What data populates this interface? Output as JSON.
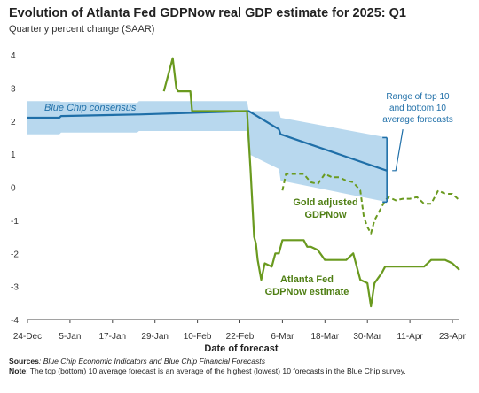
{
  "chart_data": {
    "type": "line",
    "title": "Evolution of Atlanta Fed GDPNow real GDP estimate for 2025: Q1",
    "subtitle": "Quarterly percent change (SAAR)",
    "xlabel": "Date of forecast",
    "ylabel": "",
    "ylim": [
      -4,
      4
    ],
    "yticks": [
      4,
      3,
      2,
      1,
      0,
      -1,
      -2,
      -3,
      -4
    ],
    "xrange_days": [
      0,
      122
    ],
    "xticks": [
      {
        "day": 0,
        "label": "24-Dec"
      },
      {
        "day": 12,
        "label": "5-Jan"
      },
      {
        "day": 24,
        "label": "17-Jan"
      },
      {
        "day": 36,
        "label": "29-Jan"
      },
      {
        "day": 48,
        "label": "10-Feb"
      },
      {
        "day": 60,
        "label": "22-Feb"
      },
      {
        "day": 72,
        "label": "6-Mar"
      },
      {
        "day": 84,
        "label": "18-Mar"
      },
      {
        "day": 96,
        "label": "30-Mar"
      },
      {
        "day": 108,
        "label": "11-Apr"
      },
      {
        "day": 120,
        "label": "23-Apr"
      }
    ],
    "grid": false,
    "colors": {
      "blue_chip": "#1f6fa8",
      "range_band": "#b8d8ee",
      "gdpnow": "#6a9a1f",
      "annotation_blue": "#1f6fa8",
      "annotation_green": "#4f7f14"
    },
    "band": {
      "name": "Range of top 10 and bottom 10 average forecasts",
      "x": [
        0,
        9,
        9.5,
        20,
        20.5,
        31,
        31.5,
        62,
        62.5,
        71,
        71.5,
        101.5
      ],
      "low": [
        1.6,
        1.6,
        1.65,
        1.65,
        1.65,
        1.65,
        1.7,
        1.7,
        1.0,
        0.55,
        0.2,
        -0.45
      ],
      "high": [
        2.6,
        2.6,
        2.58,
        2.58,
        2.55,
        2.55,
        2.6,
        2.6,
        2.3,
        2.3,
        2.1,
        1.5
      ]
    },
    "series": [
      {
        "name": "Blue Chip consensus",
        "style": "solid",
        "x": [
          0,
          9,
          9.5,
          31,
          31.5,
          62,
          62.5,
          71,
          71.5,
          101.5
        ],
        "y": [
          2.1,
          2.1,
          2.15,
          2.2,
          2.2,
          2.3,
          2.3,
          1.75,
          1.6,
          0.5
        ]
      },
      {
        "name": "Atlanta Fed GDPNow estimate",
        "style": "solid",
        "x": [
          38.5,
          41,
          42,
          42.5,
          46,
          46.5,
          51,
          51.5,
          62,
          63,
          64,
          64.5,
          65,
          66,
          67,
          69,
          70,
          71,
          72,
          73,
          78,
          79,
          80,
          82,
          84,
          86,
          88,
          90,
          92,
          94,
          96,
          97,
          98,
          100,
          101,
          102,
          104,
          106,
          108,
          110,
          112,
          114,
          116,
          118,
          120,
          122
        ],
        "y": [
          2.9,
          3.9,
          3.0,
          2.9,
          2.9,
          2.3,
          2.3,
          2.3,
          2.3,
          0.5,
          -1.5,
          -1.7,
          -2.2,
          -2.8,
          -2.3,
          -2.4,
          -2.0,
          -2.0,
          -1.6,
          -1.6,
          -1.6,
          -1.8,
          -1.8,
          -1.9,
          -2.2,
          -2.2,
          -2.2,
          -2.2,
          -2.0,
          -2.8,
          -2.9,
          -3.6,
          -2.9,
          -2.6,
          -2.4,
          -2.4,
          -2.4,
          -2.4,
          -2.4,
          -2.4,
          -2.4,
          -2.2,
          -2.2,
          -2.2,
          -2.3,
          -2.5
        ]
      },
      {
        "name": "Gold adjusted GDPNow",
        "style": "dashed",
        "x": [
          72,
          73,
          75,
          76,
          78,
          80,
          82,
          84,
          86,
          88,
          90,
          92,
          94,
          95,
          96,
          97,
          98,
          100,
          101,
          102,
          104,
          106,
          108,
          110,
          112,
          114,
          116,
          118,
          120,
          122
        ],
        "y": [
          -0.1,
          0.4,
          0.4,
          0.4,
          0.4,
          0.15,
          0.1,
          0.4,
          0.3,
          0.3,
          0.2,
          0.15,
          -0.1,
          -0.9,
          -1.2,
          -1.4,
          -1.0,
          -0.6,
          -0.4,
          -0.3,
          -0.4,
          -0.35,
          -0.35,
          -0.3,
          -0.5,
          -0.5,
          -0.1,
          -0.2,
          -0.2,
          -0.4
        ]
      }
    ],
    "annotations": [
      {
        "text": "Blue Chip consensus",
        "style": "italic",
        "color": "blue"
      },
      {
        "text": "Range of top 10 and bottom 10 average forecasts",
        "lines": [
          "Range of top 10",
          "and bottom 10",
          "average forecasts"
        ],
        "color": "blue"
      },
      {
        "text": "Gold adjusted GDPNow",
        "lines": [
          "Gold adjusted",
          "GDPNow"
        ],
        "color": "green"
      },
      {
        "text": "Atlanta Fed GDPNow estimate",
        "lines": [
          "Atlanta Fed",
          "GDPNow estimate"
        ],
        "color": "green"
      }
    ]
  },
  "footer": {
    "sources_label": "Sources",
    "sources_text": ": Blue Chip Economic Indicators and Blue Chip Financial Forecasts",
    "note_label": "Note",
    "note_text": ": The top (bottom) 10 average forecast is an average of the highest (lowest) 10 forecasts in the Blue Chip survey."
  }
}
